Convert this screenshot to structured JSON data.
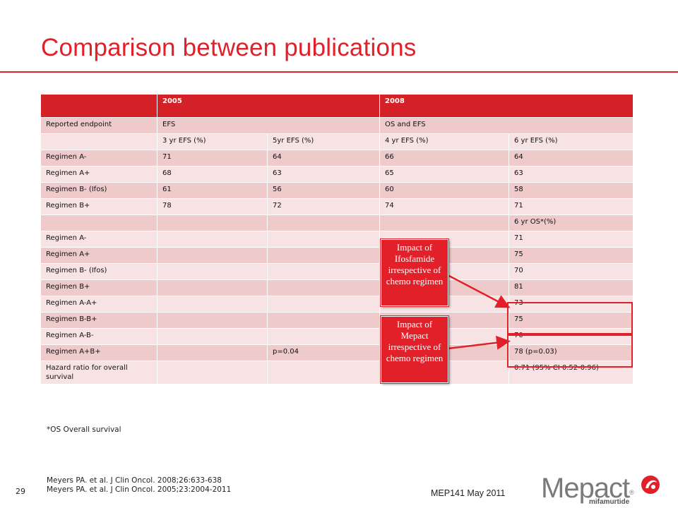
{
  "title": "Comparison between publications",
  "table": {
    "header": [
      "",
      "2005",
      "",
      "2008",
      ""
    ],
    "rows": [
      [
        "Reported endpoint",
        "EFS",
        "",
        "OS and EFS",
        ""
      ],
      [
        "",
        "3 yr EFS (%)",
        "5yr EFS (%)",
        "4 yr EFS (%)",
        "6 yr EFS (%)"
      ],
      [
        "Regimen A-",
        "71",
        "64",
        "66",
        "64"
      ],
      [
        "Regimen A+",
        "68",
        "63",
        "65",
        "63"
      ],
      [
        "Regimen B- (Ifos)",
        "61",
        "56",
        "60",
        "58"
      ],
      [
        "Regimen B+",
        "78",
        "72",
        "74",
        "71"
      ],
      [
        "",
        "",
        "",
        "",
        "6 yr OS*(%)"
      ],
      [
        "Regimen A-",
        "",
        "",
        "",
        "71"
      ],
      [
        "Regimen A+",
        "",
        "",
        "",
        "75"
      ],
      [
        "Regimen B- (Ifos)",
        "",
        "",
        "",
        "70"
      ],
      [
        "Regimen B+",
        "",
        "",
        "",
        "81"
      ],
      [
        "Regimen A-A+",
        "",
        "",
        "",
        "73"
      ],
      [
        "Regimen B-B+",
        "",
        "",
        "",
        "75"
      ],
      [
        "Regimen A-B-",
        "",
        "",
        "",
        "70"
      ],
      [
        "Regimen A+B+",
        "",
        "p=0.04",
        "",
        "78 (p=0.03)"
      ],
      [
        "Hazard ratio for overall survival",
        "",
        "",
        "",
        "0.71 (95% CI 0.52-0.96)"
      ]
    ]
  },
  "callouts": {
    "ifosfamide": "Impact of Ifosfamide irrespective of chemo regimen",
    "mepact": "Impact of Mepact irrespective of chemo regimen"
  },
  "footnote": "*OS Overall survival",
  "references": [
    "Meyers PA. et al. J Clin Oncol. 2008;26:633-638",
    "Meyers PA. et al. J Clin Oncol. 2005;23:2004-2011"
  ],
  "page_number": "29",
  "footer": "MEP141 May 2011",
  "logo": {
    "word": "Mepact",
    "registered": "®",
    "subtitle": "mifamurtide"
  },
  "colors": {
    "accent": "#e2202a",
    "header_row": "#d42027",
    "row_dark": "#efcacb",
    "row_light": "#f7e3e3"
  }
}
